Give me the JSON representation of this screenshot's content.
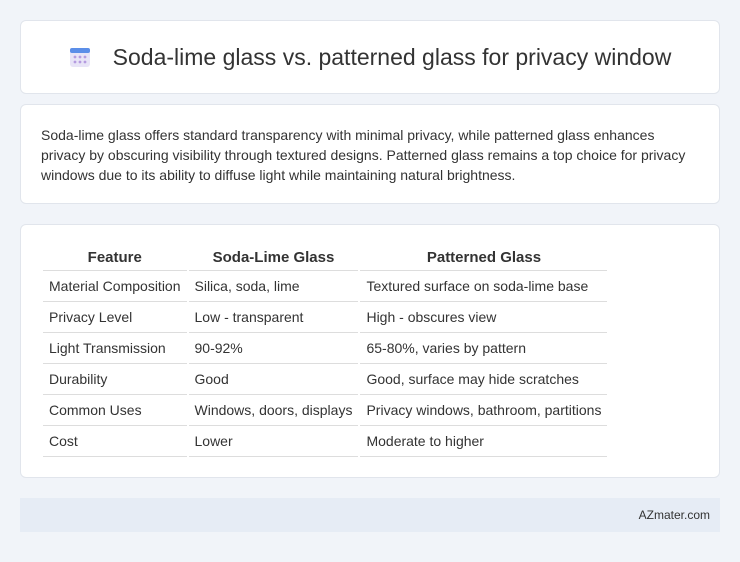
{
  "header": {
    "title": "Soda-lime glass vs. patterned glass for privacy window"
  },
  "intro": "Soda-lime glass offers standard transparency with minimal privacy, while patterned glass enhances privacy by obscuring visibility through textured designs. Patterned glass remains a top choice for privacy windows due to its ability to diffuse light while maintaining natural brightness.",
  "table": {
    "headers": [
      "Feature",
      "Soda-Lime Glass",
      "Patterned Glass"
    ],
    "rows": [
      [
        "Material Composition",
        "Silica, soda, lime",
        "Textured surface on soda-lime base"
      ],
      [
        "Privacy Level",
        "Low - transparent",
        "High - obscures view"
      ],
      [
        "Light Transmission",
        "90-92%",
        "65-80%, varies by pattern"
      ],
      [
        "Durability",
        "Good",
        "Good, surface may hide scratches"
      ],
      [
        "Common Uses",
        "Windows, doors, displays",
        "Privacy windows, bathroom, partitions"
      ],
      [
        "Cost",
        "Lower",
        "Moderate to higher"
      ]
    ]
  },
  "footer": "AZmater.com"
}
